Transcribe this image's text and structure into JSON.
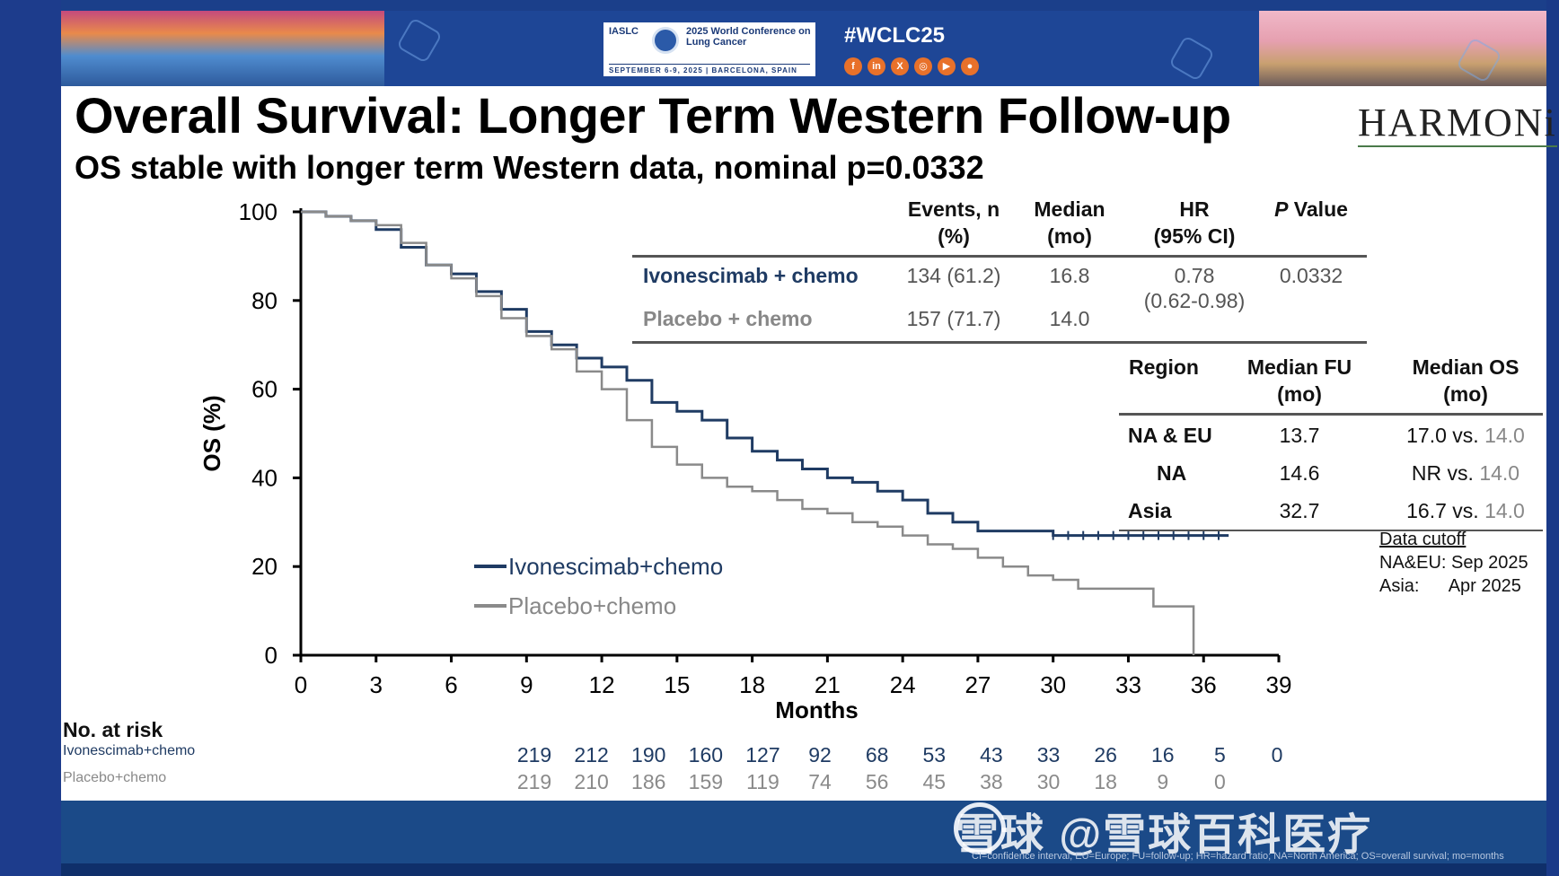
{
  "slide": {
    "title": "Overall Survival: Longer Term Western Follow-up",
    "subtitle": "OS stable with longer term Western data, nominal p=0.0332",
    "trial_logo": "HARMONi"
  },
  "banner": {
    "org": "IASLC",
    "conference_name": "2025 World Conference on Lung Cancer",
    "conference_dates": "SEPTEMBER 6-9, 2025 | BARCELONA, SPAIN",
    "hashtag": "#WCLC25",
    "social_icons": [
      "facebook-icon",
      "linkedin-icon",
      "x-icon",
      "instagram-icon",
      "youtube-icon",
      "podcast-icon"
    ]
  },
  "chart_data": {
    "type": "line",
    "ylabel": "OS (%)",
    "xlabel": "Months",
    "xlim": [
      0,
      39
    ],
    "ylim": [
      0,
      100
    ],
    "x_ticks": [
      0,
      3,
      6,
      9,
      12,
      15,
      18,
      21,
      24,
      27,
      30,
      33,
      36,
      39
    ],
    "y_ticks": [
      0,
      20,
      40,
      60,
      80,
      100
    ],
    "series": [
      {
        "name": "Ivonescimab+chemo",
        "color": "#1f3b63",
        "x": [
          0,
          1,
          2,
          3,
          4,
          5,
          6,
          7,
          8,
          9,
          10,
          11,
          12,
          13,
          14,
          15,
          16,
          17,
          18,
          19,
          20,
          21,
          22,
          23,
          24,
          25,
          26,
          27,
          28,
          29,
          30,
          31,
          32,
          33,
          34,
          35,
          36,
          37
        ],
        "y": [
          100,
          99,
          98,
          96,
          92,
          88,
          86,
          82,
          78,
          73,
          70,
          67,
          65,
          62,
          57,
          55,
          53,
          49,
          46,
          44,
          42,
          40,
          39,
          37,
          35,
          32,
          30,
          28,
          28,
          28,
          27,
          27,
          27,
          27,
          27,
          27,
          27,
          27
        ]
      },
      {
        "name": "Placebo+chemo",
        "color": "#8a8a8a",
        "x": [
          0,
          1,
          2,
          3,
          4,
          5,
          6,
          7,
          8,
          9,
          10,
          11,
          12,
          13,
          14,
          15,
          16,
          17,
          18,
          19,
          20,
          21,
          22,
          23,
          24,
          25,
          26,
          27,
          28,
          29,
          30,
          31,
          32,
          33,
          33.8,
          34,
          35.5,
          35.6
        ],
        "y": [
          100,
          99,
          98,
          97,
          93,
          88,
          85,
          81,
          76,
          72,
          69,
          64,
          60,
          53,
          47,
          43,
          40,
          38,
          37,
          35,
          33,
          32,
          30,
          29,
          27,
          25,
          24,
          22,
          20,
          18,
          17,
          15,
          15,
          15,
          15,
          11,
          11,
          0
        ]
      }
    ],
    "legend": [
      "Ivonescimab+chemo",
      "Placebo+chemo"
    ],
    "legend_position": "lower-left",
    "grid": false
  },
  "efficacy_table": {
    "headers": [
      "Events, n\n(%)",
      "Median\n(mo)",
      "HR\n(95% CI)",
      "P Value"
    ],
    "rows": [
      {
        "label": "Ivonescimab + chemo",
        "events": "134 (61.2)",
        "median": "16.8"
      },
      {
        "label": "Placebo + chemo",
        "events": "157 (71.7)",
        "median": "14.0"
      }
    ],
    "hr": "0.78",
    "hr_ci": "(0.62-0.98)",
    "p_value": "0.0332"
  },
  "region_table": {
    "headers": [
      "Region",
      "Median FU\n(mo)",
      "Median OS\n(mo)"
    ],
    "rows": [
      {
        "region": "NA & EU",
        "fu": "13.7",
        "os_ivo": "17.0 vs.",
        "os_pbo": "14.0"
      },
      {
        "region": "NA",
        "fu": "14.6",
        "os_ivo": "NR vs.",
        "os_pbo": "14.0"
      },
      {
        "region": "Asia",
        "fu": "32.7",
        "os_ivo": "16.7 vs.",
        "os_pbo": "14.0"
      }
    ]
  },
  "data_cutoff": {
    "title": "Data cutoff",
    "line1": "NA&EU: Sep 2025",
    "line2": "Asia:      Apr 2025"
  },
  "at_risk": {
    "header": "No. at risk",
    "rows": [
      {
        "label": "Ivonescimab+chemo",
        "color": "#1f3b63",
        "values": [
          "219",
          "212",
          "190",
          "160",
          "127",
          "92",
          "68",
          "53",
          "43",
          "33",
          "26",
          "16",
          "5",
          "0"
        ]
      },
      {
        "label": "Placebo+chemo",
        "color": "#8a8a8a",
        "values": [
          "219",
          "210",
          "186",
          "159",
          "119",
          "74",
          "56",
          "45",
          "38",
          "30",
          "18",
          "9",
          "0"
        ]
      }
    ]
  },
  "footer": {
    "watermark": "雪球 @雪球百科医疗",
    "abbreviations": "CI=confidence interval; EU=Europe; FU=follow-up; HR=hazard ratio; NA=North America; OS=overall survival; mo=months"
  }
}
